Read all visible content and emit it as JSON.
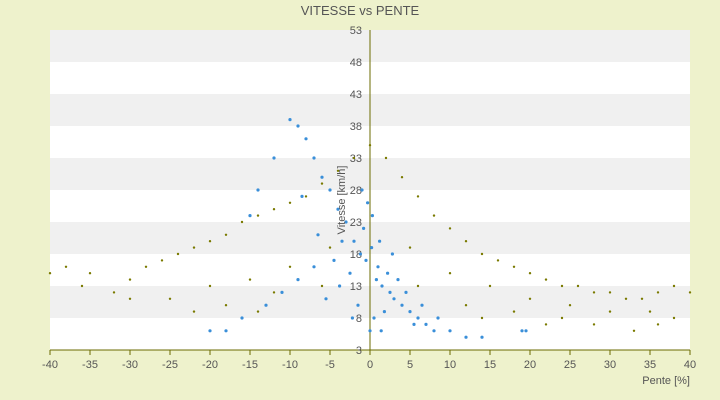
{
  "chart_data": {
    "type": "scatter",
    "title": "VITESSE vs PENTE",
    "xlabel": "Pente [%]",
    "ylabel": "Vitesse [km/h]",
    "xlim": [
      -40,
      40
    ],
    "ylim": [
      3,
      53
    ],
    "xticks": [
      -40,
      -35,
      -30,
      -25,
      -20,
      -15,
      -10,
      -5,
      0,
      5,
      10,
      15,
      20,
      25,
      30,
      35,
      40
    ],
    "xtick_labels": [
      "-40",
      "-35",
      "-30",
      "-25",
      "-20",
      "-15",
      "-10",
      "-5",
      "0",
      "5",
      "10",
      "15",
      "20",
      "25",
      "30",
      "35",
      "40"
    ],
    "yticks": [
      3,
      8,
      13,
      18,
      23,
      28,
      33,
      38,
      43,
      48,
      53
    ],
    "ytick_labels": [
      "3",
      "8",
      "13",
      "18",
      "23",
      "28",
      "33",
      "38",
      "43",
      "48",
      "53"
    ],
    "grid": "horizontal-bands",
    "legend": "none",
    "colors": {
      "background": "#eef2cc",
      "band_light": "#ffffff",
      "band_dark": "#f0f0f0",
      "primary_points": "#3a8fd9",
      "secondary_points": "#7a7a00",
      "axis": "#6b6b00"
    },
    "series": [
      {
        "values_description": "dense blue cloud, centered near 0% slope",
        "points": [
          [
            -0.5,
            17
          ],
          [
            0.2,
            19
          ],
          [
            1.0,
            16
          ],
          [
            -1.2,
            18
          ],
          [
            0.8,
            14
          ],
          [
            -2.0,
            20
          ],
          [
            1.5,
            13
          ],
          [
            -0.8,
            22
          ],
          [
            2.5,
            12
          ],
          [
            3.0,
            11
          ],
          [
            -3.0,
            23
          ],
          [
            -4.0,
            25
          ],
          [
            4.0,
            10
          ],
          [
            5.0,
            9
          ],
          [
            6.0,
            8
          ],
          [
            7.0,
            7
          ],
          [
            -5.0,
            28
          ],
          [
            -6.0,
            30
          ],
          [
            -7.0,
            33
          ],
          [
            -8.0,
            36
          ],
          [
            -9.0,
            38
          ],
          [
            -10.0,
            39
          ],
          [
            8.0,
            6
          ],
          [
            10.0,
            6
          ],
          [
            12.0,
            5
          ],
          [
            14.0,
            5
          ],
          [
            19.0,
            6
          ],
          [
            19.5,
            6
          ],
          [
            -12.0,
            33
          ],
          [
            -14.0,
            28
          ],
          [
            -15.0,
            24
          ],
          [
            -18.0,
            6
          ],
          [
            -20.0,
            6
          ],
          [
            -16.0,
            8
          ],
          [
            -13.0,
            10
          ],
          [
            -11.0,
            12
          ],
          [
            -9.0,
            14
          ],
          [
            -7.0,
            16
          ],
          [
            -3.5,
            20
          ],
          [
            0.0,
            6
          ],
          [
            0.5,
            8
          ],
          [
            1.8,
            9
          ],
          [
            -1.5,
            10
          ],
          [
            2.2,
            15
          ],
          [
            -2.5,
            15
          ],
          [
            3.5,
            14
          ],
          [
            -4.5,
            17
          ],
          [
            4.5,
            12
          ],
          [
            0.3,
            24
          ],
          [
            -0.3,
            26
          ],
          [
            -1.0,
            28
          ],
          [
            1.2,
            20
          ],
          [
            2.8,
            18
          ],
          [
            -3.8,
            13
          ],
          [
            -5.5,
            11
          ],
          [
            5.5,
            7
          ],
          [
            6.5,
            10
          ],
          [
            8.5,
            8
          ],
          [
            -6.5,
            21
          ],
          [
            -8.5,
            27
          ],
          [
            -2.2,
            8
          ],
          [
            1.4,
            6
          ]
        ]
      },
      {
        "values_description": "olive dotted curves radiating from center",
        "points": [
          [
            -40,
            15
          ],
          [
            -38,
            16
          ],
          [
            -35,
            15
          ],
          [
            -32,
            12
          ],
          [
            -30,
            14
          ],
          [
            -28,
            16
          ],
          [
            -26,
            17
          ],
          [
            -24,
            18
          ],
          [
            -22,
            19
          ],
          [
            -20,
            20
          ],
          [
            -18,
            21
          ],
          [
            -16,
            23
          ],
          [
            -14,
            24
          ],
          [
            -12,
            25
          ],
          [
            -10,
            26
          ],
          [
            -8,
            27
          ],
          [
            -6,
            29
          ],
          [
            -4,
            31
          ],
          [
            -2,
            33
          ],
          [
            0,
            35
          ],
          [
            2,
            33
          ],
          [
            4,
            30
          ],
          [
            6,
            27
          ],
          [
            8,
            24
          ],
          [
            10,
            22
          ],
          [
            12,
            20
          ],
          [
            14,
            18
          ],
          [
            16,
            17
          ],
          [
            18,
            16
          ],
          [
            20,
            15
          ],
          [
            22,
            14
          ],
          [
            24,
            13
          ],
          [
            26,
            13
          ],
          [
            28,
            12
          ],
          [
            30,
            12
          ],
          [
            32,
            11
          ],
          [
            34,
            11
          ],
          [
            36,
            12
          ],
          [
            38,
            13
          ],
          [
            40,
            12
          ],
          [
            -20,
            13
          ],
          [
            -15,
            14
          ],
          [
            -10,
            16
          ],
          [
            -5,
            19
          ],
          [
            5,
            19
          ],
          [
            10,
            15
          ],
          [
            15,
            13
          ],
          [
            20,
            11
          ],
          [
            25,
            10
          ],
          [
            30,
            9
          ],
          [
            -25,
            11
          ],
          [
            -18,
            10
          ],
          [
            -12,
            12
          ],
          [
            -6,
            13
          ],
          [
            6,
            13
          ],
          [
            12,
            10
          ],
          [
            18,
            9
          ],
          [
            24,
            8
          ],
          [
            35,
            9
          ],
          [
            38,
            8
          ],
          [
            -36,
            13
          ],
          [
            -30,
            11
          ],
          [
            -22,
            9
          ],
          [
            -14,
            9
          ],
          [
            14,
            8
          ],
          [
            22,
            7
          ],
          [
            28,
            7
          ],
          [
            33,
            6
          ],
          [
            36,
            7
          ]
        ]
      }
    ]
  }
}
